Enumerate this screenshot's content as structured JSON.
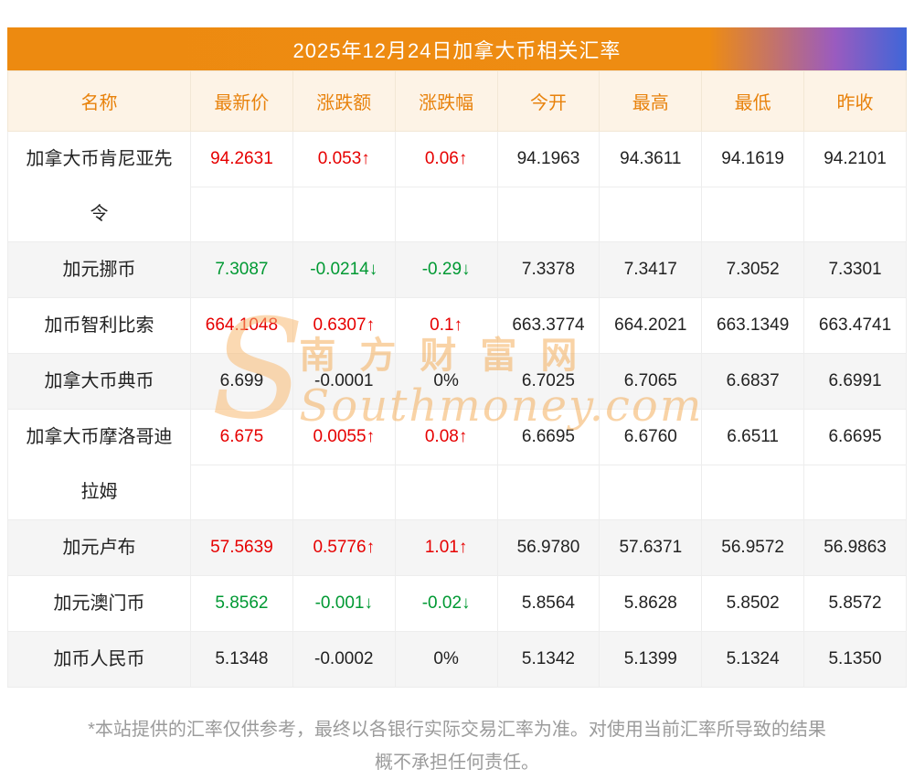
{
  "colors": {
    "title_bar_orange": "#ed8a10",
    "title_bar_blue": "#3f66d8",
    "header_bg": "#fdf3e6",
    "header_text": "#e8820c",
    "up_red": "#e60000",
    "down_green": "#009933",
    "neutral_text": "#222222",
    "stripe_bg": "#f5f5f5",
    "footer_text": "#9b9b9b",
    "watermark_orange": "#f3a84e"
  },
  "chart_data": {
    "type": "table",
    "title": "2025年12月24日加拿大币相关汇率",
    "columns": [
      "名称",
      "最新价",
      "涨跌额",
      "涨跌幅",
      "今开",
      "最高",
      "最低",
      "昨收"
    ],
    "rows": [
      {
        "name": "加拿大币肯尼亚先令",
        "latest": "94.2631",
        "change": "0.053↑",
        "pct": "0.06↑",
        "open": "94.1963",
        "high": "94.3611",
        "low": "94.1619",
        "prev": "94.2101",
        "trend": "up",
        "two_line": true
      },
      {
        "name": "加元挪币",
        "latest": "7.3087",
        "change": "-0.0214↓",
        "pct": "-0.29↓",
        "open": "7.3378",
        "high": "7.3417",
        "low": "7.3052",
        "prev": "7.3301",
        "trend": "down",
        "two_line": false
      },
      {
        "name": "加币智利比索",
        "latest": "664.1048",
        "change": "0.6307↑",
        "pct": "0.1↑",
        "open": "663.3774",
        "high": "664.2021",
        "low": "663.1349",
        "prev": "663.4741",
        "trend": "up",
        "two_line": false
      },
      {
        "name": "加拿大币典币",
        "latest": "6.699",
        "change": "-0.0001",
        "pct": "0%",
        "open": "6.7025",
        "high": "6.7065",
        "low": "6.6837",
        "prev": "6.6991",
        "trend": "flat",
        "two_line": false
      },
      {
        "name": "加拿大币摩洛哥迪拉姆",
        "latest": "6.675",
        "change": "0.0055↑",
        "pct": "0.08↑",
        "open": "6.6695",
        "high": "6.6760",
        "low": "6.6511",
        "prev": "6.6695",
        "trend": "up",
        "two_line": true
      },
      {
        "name": "加元卢布",
        "latest": "57.5639",
        "change": "0.5776↑",
        "pct": "1.01↑",
        "open": "56.9780",
        "high": "57.6371",
        "low": "56.9572",
        "prev": "56.9863",
        "trend": "up",
        "two_line": false
      },
      {
        "name": "加元澳门币",
        "latest": "5.8562",
        "change": "-0.001↓",
        "pct": "-0.02↓",
        "open": "5.8564",
        "high": "5.8628",
        "low": "5.8502",
        "prev": "5.8572",
        "trend": "down",
        "two_line": false
      },
      {
        "name": "加币人民币",
        "latest": "5.1348",
        "change": "-0.0002",
        "pct": "0%",
        "open": "5.1342",
        "high": "5.1399",
        "low": "5.1324",
        "prev": "5.1350",
        "trend": "flat",
        "two_line": false
      }
    ]
  },
  "watermark": {
    "logo": "S",
    "chinese": "南方财富网",
    "english": "Southmoney.com"
  },
  "footer": {
    "lines": [
      "*本站提供的汇率仅供参考，最终以各银行实际交易汇率为准。对使用当前汇率所导致的结果",
      "概不承担任何责任。"
    ]
  }
}
